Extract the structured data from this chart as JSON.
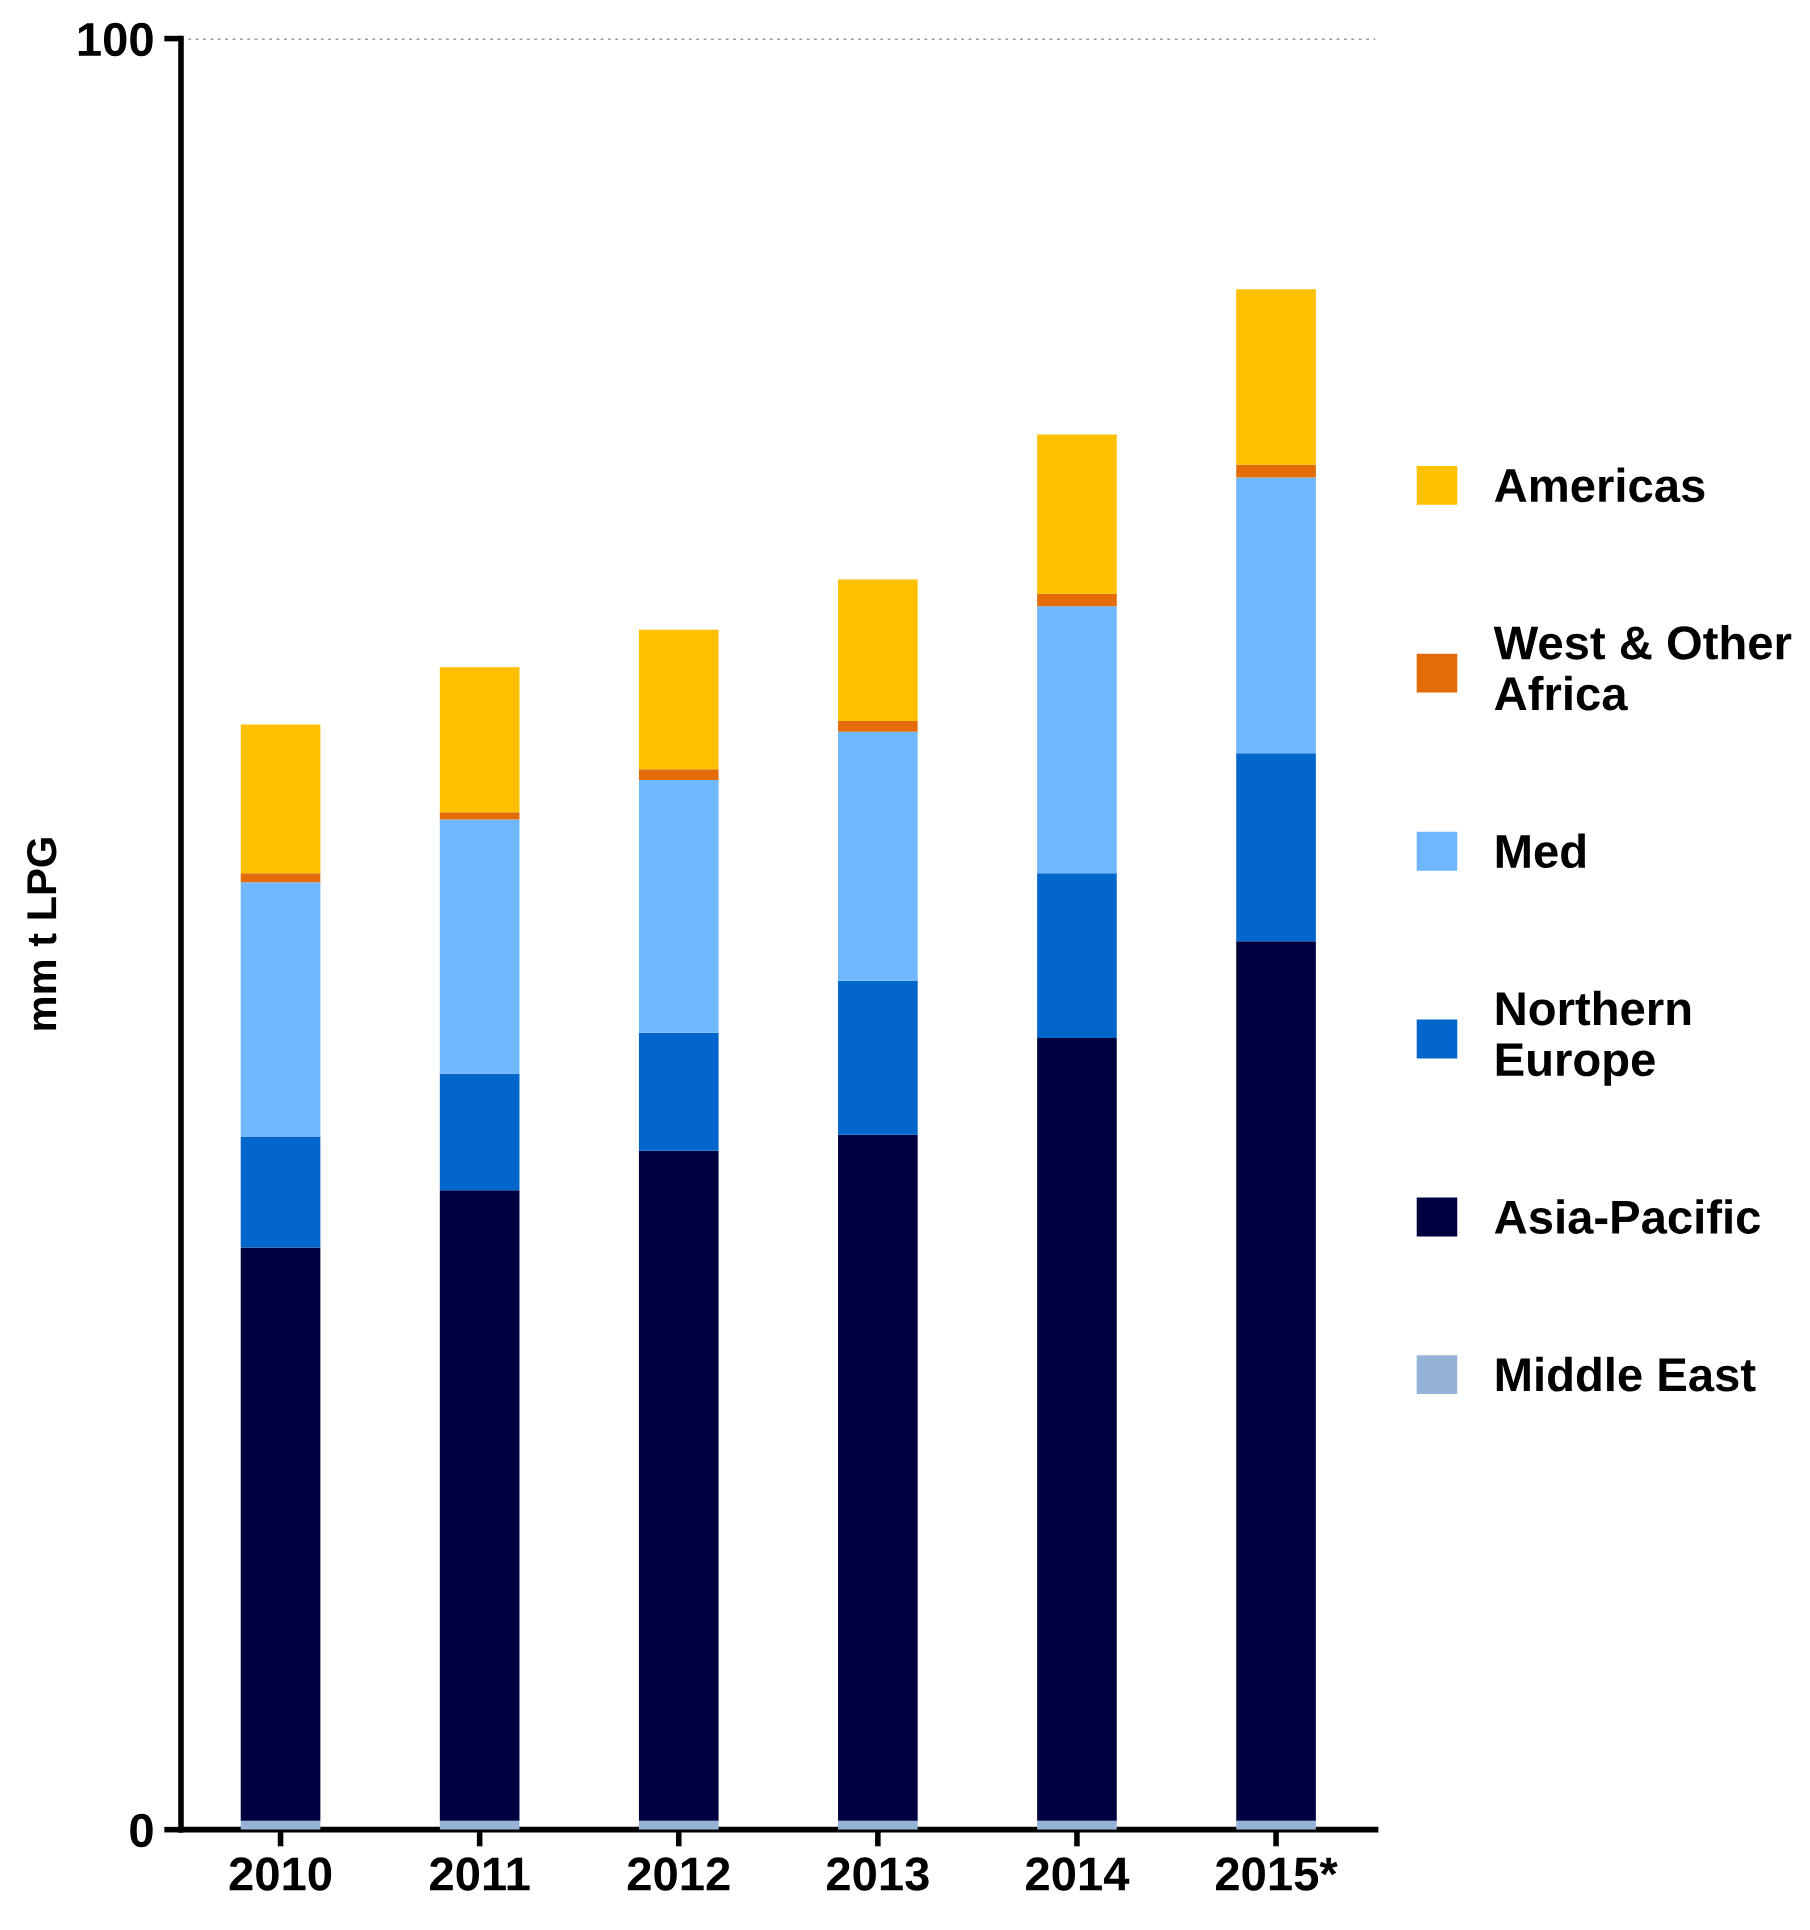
{
  "chart_data": {
    "type": "bar",
    "stacked": true,
    "ylabel": "mm t LPG",
    "categories": [
      "2010",
      "2011",
      "2012",
      "2013",
      "2014",
      "2015*"
    ],
    "series": [
      {
        "name": "Middle East",
        "color": "#95b3d7",
        "values": [
          0.5,
          0.5,
          0.5,
          0.5,
          0.5,
          0.5
        ]
      },
      {
        "name": "Asia-Pacific",
        "color": "#000040",
        "values": [
          32.0,
          35.2,
          37.4,
          38.3,
          43.7,
          49.1
        ]
      },
      {
        "name": "Northern Europe",
        "color": "#0066cc",
        "values": [
          6.2,
          6.5,
          6.6,
          8.6,
          9.2,
          10.5
        ]
      },
      {
        "name": "Med",
        "color": "#6fb7ff",
        "values": [
          14.2,
          14.2,
          14.1,
          13.9,
          14.9,
          15.4
        ]
      },
      {
        "name": "West & Other Africa",
        "color": "#e36c09",
        "values": [
          0.5,
          0.4,
          0.6,
          0.6,
          0.7,
          0.7
        ]
      },
      {
        "name": "Americas",
        "color": "#ffc000",
        "values": [
          8.3,
          8.1,
          7.8,
          7.9,
          8.9,
          9.8
        ]
      }
    ],
    "ylim": [
      0,
      100
    ],
    "yticks": [
      0,
      100
    ],
    "ref_lines": [
      {
        "axis": "y",
        "value": 100,
        "line_style": "dotted",
        "color": "#999999"
      }
    ],
    "legend": "right"
  }
}
